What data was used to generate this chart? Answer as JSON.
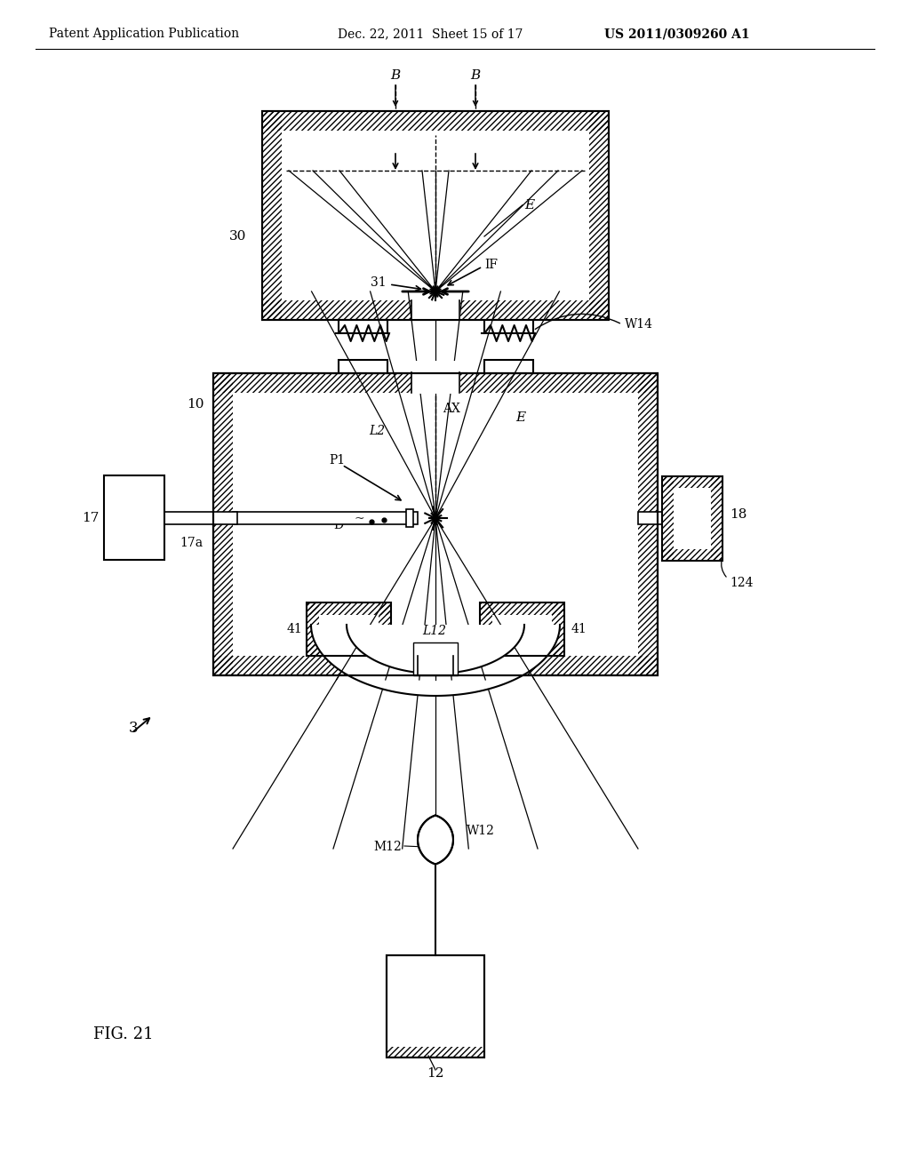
{
  "title_left": "Patent Application Publication",
  "title_mid": "Dec. 22, 2011  Sheet 15 of 17",
  "title_right": "US 2011/0309260 A1",
  "fig_label": "FIG. 21",
  "background": "#ffffff"
}
